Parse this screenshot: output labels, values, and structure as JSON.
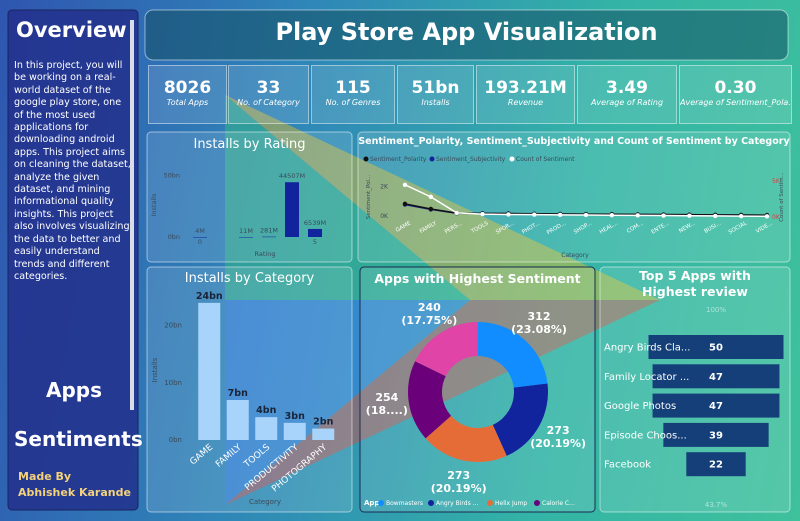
{
  "sidebar": {
    "title": "Overview",
    "description": "In this project, you will be working on a real-world dataset of the google play store, one of the most used applications for downloading android apps. This project aims on cleaning the dataset, analyze the given dataset, and mining informational quality insights. This project also involves visualizing the data to better and easily understand trends and different categories.",
    "heading_1": "Apps",
    "heading_2": "Sentiments",
    "credit_label": "Made By",
    "credit_name": "Abhishek Karande"
  },
  "header": {
    "title": "Play Store App Visualization"
  },
  "kpis": [
    {
      "value": "8026",
      "label": "Total Apps"
    },
    {
      "value": "33",
      "label": "No. of Category"
    },
    {
      "value": "115",
      "label": "No. of Genres"
    },
    {
      "value": "51bn",
      "label": "Installs"
    },
    {
      "value": "193.21M",
      "label": "Revenue"
    },
    {
      "value": "3.49",
      "label": "Average of Rating"
    },
    {
      "value": "0.30",
      "label": "Average of Sentiment_Pola..."
    }
  ],
  "chart_data": [
    {
      "type": "bar",
      "title": "Installs by Rating",
      "x": [
        0,
        2,
        3,
        4,
        5
      ],
      "values": [
        0.004,
        0.011,
        0.281,
        44.507,
        6.539
      ],
      "value_labels": [
        "4M",
        "11M",
        "281M",
        "44507M",
        "6539M"
      ],
      "xlim": [
        0,
        5
      ],
      "xticks": [
        0,
        5
      ],
      "ylim": [
        0,
        52
      ],
      "yticks": [
        {
          "value": 0,
          "label": "0bn"
        },
        {
          "value": 50,
          "label": "50bn"
        }
      ],
      "x_label": "Rating",
      "y_label": "Installs",
      "color": "#12239e"
    },
    {
      "type": "line",
      "title": "Sentiment_Polarity, Sentiment_Subjectivity and Count of Sentiment by Category",
      "categories": [
        "GAME",
        "FAMILY",
        "PERS...",
        "TOOLS",
        "SPOR...",
        "PHOT...",
        "PROD...",
        "SHOP...",
        "HEAL...",
        "COM...",
        "ENTE...",
        "NEW...",
        "BUSI...",
        "SOCIAL",
        "VIDE..."
      ],
      "series": [
        {
          "name": "Sentiment_Polarity",
          "color": "#111111",
          "values": [
            830,
            480,
            200,
            180,
            170,
            150,
            140,
            130,
            120,
            110,
            100,
            90,
            80,
            70,
            60
          ]
        },
        {
          "name": "Sentiment_Subjectivity",
          "color": "#12239e",
          "values": [
            780,
            450,
            190,
            170,
            160,
            140,
            130,
            120,
            110,
            100,
            90,
            80,
            70,
            60,
            50
          ]
        },
        {
          "name": "Count of Sentiment",
          "color": "#ffffff",
          "axis": "y2",
          "values": [
            4440,
            2780,
            560,
            400,
            350,
            330,
            300,
            280,
            250,
            230,
            200,
            180,
            150,
            120,
            100
          ]
        }
      ],
      "ylim": [
        0,
        2800
      ],
      "yticks": [
        {
          "value": 0,
          "label": "0K"
        },
        {
          "value": 2000,
          "label": "2K"
        }
      ],
      "y2lim": [
        0,
        5800
      ],
      "y2ticks": [
        {
          "value": 0,
          "label": "0K"
        },
        {
          "value": 5000,
          "label": "5K"
        }
      ],
      "x_label": "Category",
      "y_label": "Sentiment_Pol...",
      "y2_label": "Count of Sentim..."
    },
    {
      "type": "bar",
      "title": "Installs by Category",
      "categories": [
        "GAME",
        "FAMILY",
        "TOOLS",
        "PRODUCTIVITY",
        "PHOTOGRAPHY"
      ],
      "values": [
        24,
        7,
        4,
        3,
        2
      ],
      "value_labels": [
        "24bn",
        "7bn",
        "4bn",
        "3bn",
        "2bn"
      ],
      "ylim": [
        0,
        24.5
      ],
      "yticks": [
        {
          "value": 0,
          "label": "0bn"
        },
        {
          "value": 10,
          "label": "10bn"
        },
        {
          "value": 20,
          "label": "20bn"
        }
      ],
      "x_label": "Category",
      "y_label": "Installs",
      "color": "#a8d4fb"
    },
    {
      "type": "donut",
      "title": "Apps with Highest Sentiment",
      "legend_title": "App",
      "categories": [
        "Bowmasters",
        "Angry Birds ...",
        "Helix Jump",
        "Calorie C...",
        null
      ],
      "values": [
        312,
        273,
        273,
        254,
        240
      ],
      "value_labels": [
        "312\n(23.08%)",
        "273\n(20.19%)",
        "273\n(20.19%)",
        "254\n(18....)",
        "240\n(17.75%)"
      ],
      "colors": [
        "#118dff",
        "#12239e",
        "#e66c37",
        "#6b007b",
        "#e044a7"
      ]
    },
    {
      "type": "funnel",
      "title": "Top 5 Apps with Highest review",
      "categories": [
        "Angry Birds Cla...",
        "Family Locator ...",
        "Google Photos",
        "Episode Choos...",
        "Facebook"
      ],
      "values": [
        50,
        47,
        47,
        39,
        22
      ],
      "top_label": "100%",
      "bottom_label": "43.7%",
      "color": "#153f78"
    }
  ]
}
